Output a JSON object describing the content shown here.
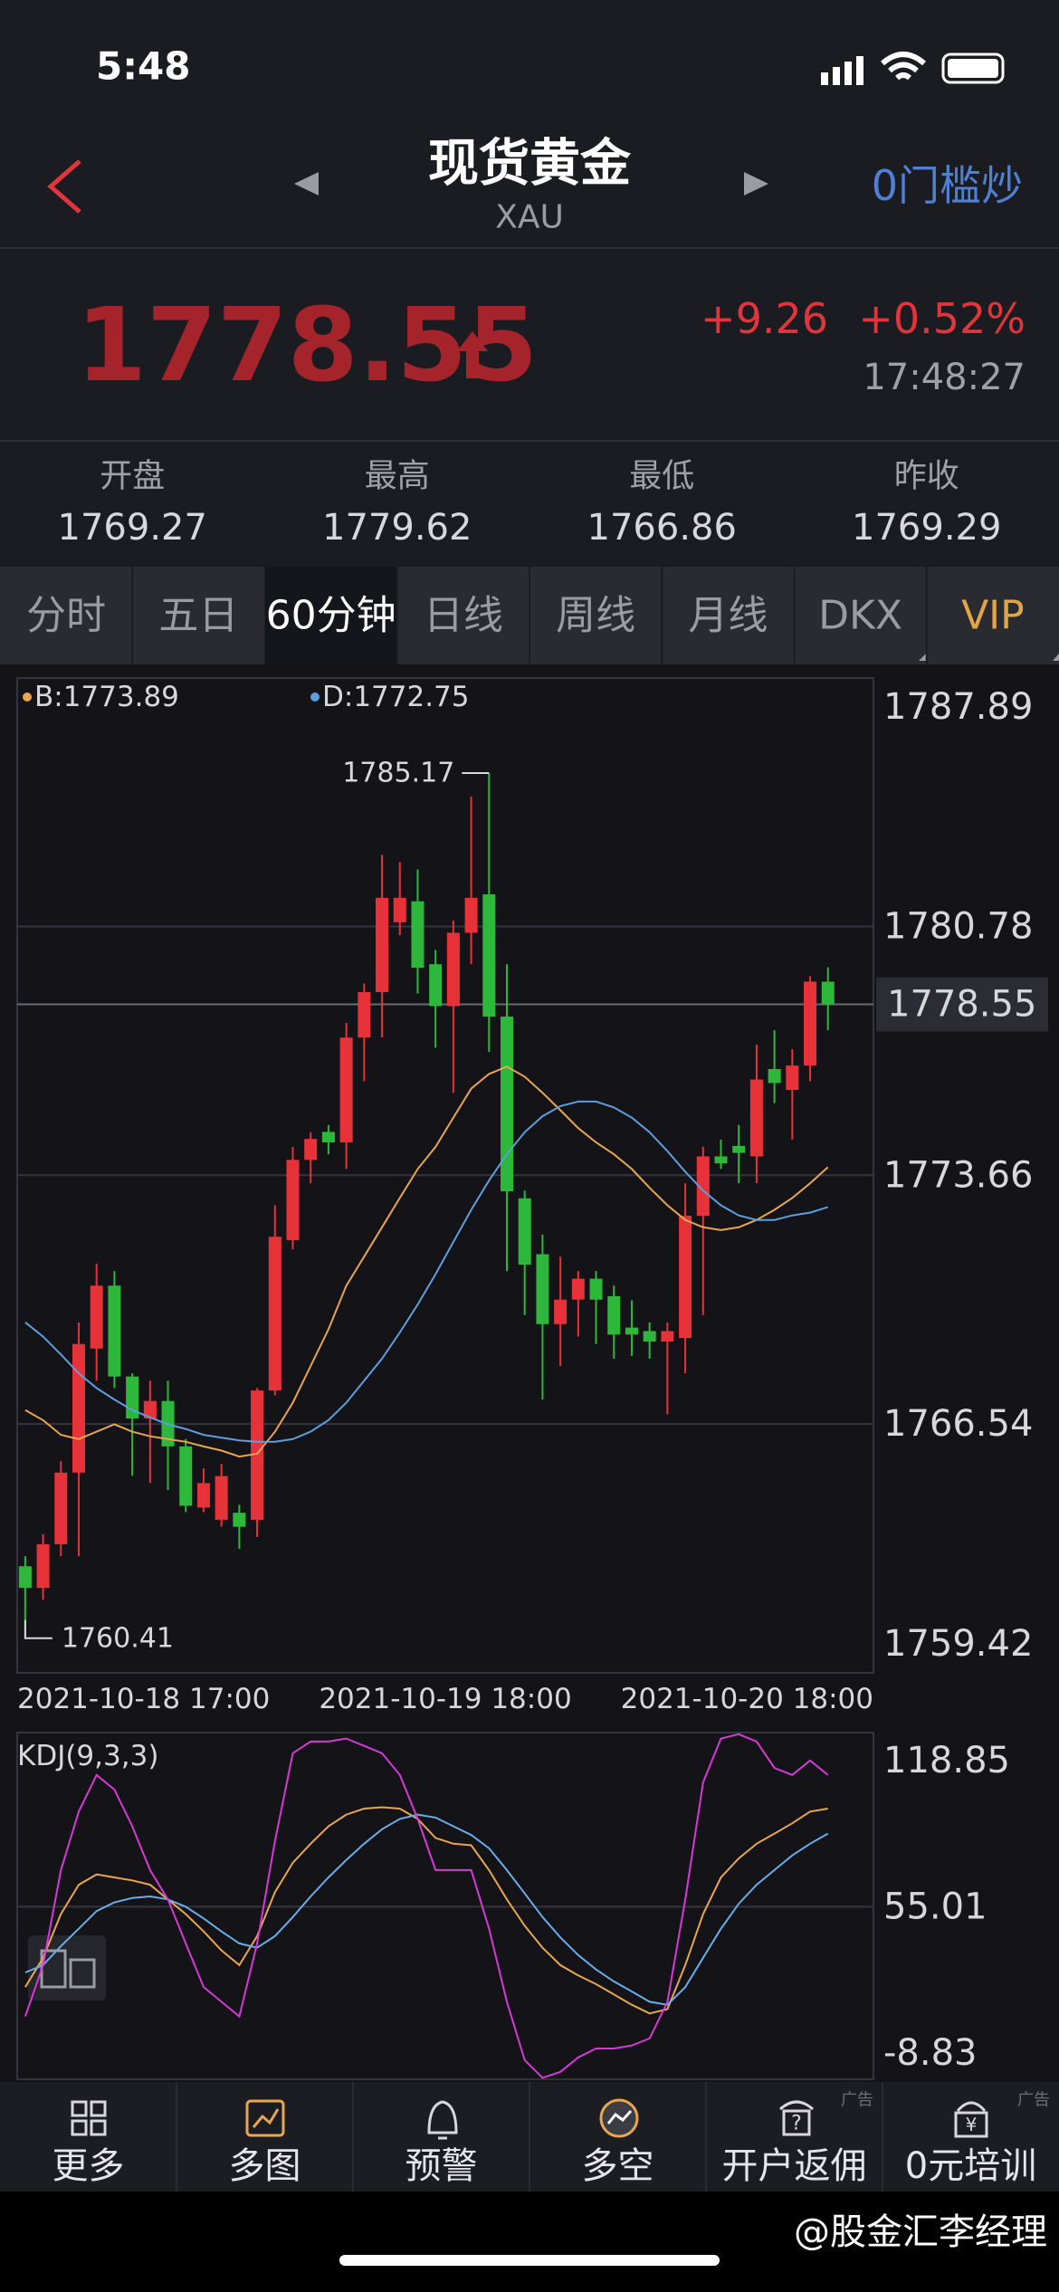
{
  "status_bar": {
    "time": "5:48"
  },
  "header": {
    "title": "现货黄金",
    "subtitle": "XAU",
    "action": "0门槛炒"
  },
  "quote": {
    "price": 1778.55,
    "change": "+9.26",
    "change_pct": "+0.52%",
    "time": "17:48:27"
  },
  "stats": [
    {
      "label": "开盘",
      "value": 1769.27
    },
    {
      "label": "最高",
      "value": 1779.62
    },
    {
      "label": "最低",
      "value": 1766.86
    },
    {
      "label": "昨收",
      "value": 1769.29
    }
  ],
  "tabs": [
    "分时",
    "五日",
    "60分钟",
    "日线",
    "周线",
    "月线",
    "DKX",
    "VIP"
  ],
  "active_tab": 2,
  "accent_tab": 7,
  "chart_data": [
    {
      "type": "candlestick",
      "legend": [
        "B:1773.89",
        "D:1772.75"
      ],
      "x_labels": [
        "2021-10-18 17:00",
        "2021-10-19 18:00",
        "2021-10-20 18:00"
      ],
      "up_color": "#e8323a",
      "down_color": "#2db83b",
      "open": [
        1762.47,
        1761.85,
        1763.1,
        1765.15,
        1768.7,
        1770.5,
        1767.9,
        1766.7,
        1767.2,
        1765.9,
        1764.15,
        1763.8,
        1764.0,
        1763.8,
        1767.5,
        1771.8,
        1774.1,
        1774.9,
        1774.6,
        1777.6,
        1778.9,
        1780.9,
        1781.5,
        1779.7,
        1778.5,
        1780.6,
        1781.7,
        1778.2,
        1773.0,
        1771.4,
        1769.4,
        1770.1,
        1770.7,
        1770.2,
        1769.3,
        1769.2,
        1768.9,
        1769.0,
        1772.5,
        1774.2,
        1774.5,
        1774.2,
        1776.7,
        1776.1,
        1776.8,
        1779.2
      ],
      "high": [
        1762.76,
        1763.39,
        1765.48,
        1769.45,
        1771.13,
        1770.92,
        1767.99,
        1767.78,
        1767.78,
        1766.11,
        1765.27,
        1765.4,
        1764.23,
        1767.57,
        1772.8,
        1774.47,
        1774.89,
        1775.1,
        1778.02,
        1779.15,
        1782.83,
        1782.62,
        1782.41,
        1780.11,
        1780.95,
        1784.5,
        1785.17,
        1779.7,
        1773.22,
        1771.96,
        1771.33,
        1770.92,
        1770.92,
        1770.5,
        1770.08,
        1769.45,
        1769.45,
        1773.43,
        1774.47,
        1774.68,
        1775.1,
        1777.4,
        1777.81,
        1777.27,
        1779.36,
        1779.61
      ],
      "low": [
        1760.41,
        1761.51,
        1762.76,
        1762.76,
        1767.78,
        1767.57,
        1765.06,
        1764.85,
        1764.65,
        1764.02,
        1764.02,
        1763.6,
        1762.97,
        1763.31,
        1767.36,
        1771.54,
        1773.43,
        1774.26,
        1773.84,
        1776.35,
        1777.61,
        1780.53,
        1778.86,
        1777.31,
        1776.02,
        1779.7,
        1777.19,
        1770.92,
        1769.66,
        1767.24,
        1768.2,
        1769.04,
        1768.83,
        1768.41,
        1768.49,
        1768.41,
        1766.82,
        1767.99,
        1769.66,
        1773.84,
        1773.43,
        1773.43,
        1775.72,
        1774.68,
        1776.35,
        1777.81
      ],
      "close": [
        1761.85,
        1763.1,
        1765.15,
        1768.83,
        1770.5,
        1767.9,
        1766.7,
        1767.2,
        1765.9,
        1764.2,
        1764.85,
        1765.05,
        1763.6,
        1767.5,
        1771.9,
        1774.1,
        1774.7,
        1774.6,
        1777.6,
        1778.9,
        1781.6,
        1781.6,
        1779.6,
        1778.5,
        1780.6,
        1781.6,
        1778.2,
        1773.2,
        1771.1,
        1769.4,
        1770.1,
        1770.7,
        1770.1,
        1769.1,
        1769.1,
        1768.9,
        1769.2,
        1772.5,
        1774.2,
        1774.0,
        1774.3,
        1776.4,
        1776.3,
        1776.8,
        1779.2,
        1778.55
      ],
      "series": [
        {
          "name": "B",
          "color": "#e8a650",
          "values": [
            1766.94,
            1766.65,
            1766.23,
            1766.11,
            1766.32,
            1766.53,
            1766.32,
            1766.19,
            1766.11,
            1766.03,
            1765.9,
            1765.78,
            1765.61,
            1765.69,
            1766.32,
            1767.15,
            1768.2,
            1769.25,
            1770.5,
            1771.33,
            1772.17,
            1773.01,
            1773.84,
            1774.47,
            1775.31,
            1776.14,
            1776.56,
            1776.77,
            1776.48,
            1776.02,
            1775.52,
            1775.01,
            1774.6,
            1774.26,
            1773.84,
            1773.3,
            1772.8,
            1772.38,
            1772.17,
            1772.09,
            1772.17,
            1772.38,
            1772.67,
            1773.01,
            1773.43,
            1773.89
          ]
        },
        {
          "name": "D",
          "color": "#5e9fdc",
          "values": [
            1769.45,
            1769.04,
            1768.53,
            1767.99,
            1767.57,
            1767.24,
            1766.94,
            1766.73,
            1766.53,
            1766.4,
            1766.23,
            1766.15,
            1766.07,
            1766.03,
            1766.03,
            1766.11,
            1766.32,
            1766.65,
            1767.15,
            1767.78,
            1768.41,
            1769.16,
            1769.96,
            1770.83,
            1771.75,
            1772.67,
            1773.51,
            1774.26,
            1774.89,
            1775.35,
            1775.64,
            1775.77,
            1775.77,
            1775.6,
            1775.31,
            1774.89,
            1774.35,
            1773.76,
            1773.22,
            1772.8,
            1772.51,
            1772.38,
            1772.38,
            1772.51,
            1772.59,
            1772.75
          ]
        }
      ],
      "annotations": [
        1785.17,
        1760.41
      ],
      "ylim": [
        1759.42,
        1787.89
      ],
      "yticks": [
        1759.42,
        1766.54,
        1773.66,
        1780.78,
        1787.89
      ],
      "grid": true
    },
    {
      "type": "line",
      "title": "KDJ(9,3,3)",
      "series": [
        {
          "name": "K",
          "color": "#e8a650",
          "values": [
            19.9,
            32.7,
            51.8,
            64.6,
            69.1,
            67.8,
            66.5,
            64.6,
            58.2,
            51.8,
            44.2,
            35.9,
            29.5,
            42.2,
            61.4,
            74.2,
            82.5,
            90.1,
            95.2,
            97.8,
            98.4,
            97.8,
            93.3,
            85.0,
            82.5,
            81.8,
            71.0,
            58.2,
            46.7,
            37.1,
            29.5,
            25.0,
            21.2,
            16.7,
            12.2,
            8.4,
            10.3,
            29.5,
            51.8,
            67.8,
            76.1,
            82.5,
            86.9,
            91.4,
            96.5,
            97.8
          ]
        },
        {
          "name": "D",
          "color": "#6aaee8",
          "values": [
            26.3,
            29.5,
            37.8,
            45.4,
            53.1,
            56.9,
            58.8,
            59.5,
            58.2,
            55.0,
            49.9,
            44.2,
            39.0,
            37.1,
            42.2,
            50.5,
            59.5,
            67.8,
            75.4,
            82.5,
            88.8,
            93.3,
            95.2,
            93.9,
            90.1,
            86.3,
            80.5,
            71.0,
            60.8,
            50.5,
            41.6,
            33.9,
            27.6,
            22.4,
            18.0,
            13.5,
            12.2,
            19.9,
            32.7,
            45.4,
            56.3,
            64.6,
            71.0,
            77.4,
            82.5,
            86.9
          ]
        },
        {
          "name": "J",
          "color": "#d63ad6",
          "values": [
            7.1,
            29.5,
            71.0,
            96.5,
            112.5,
            106.1,
            90.1,
            71.0,
            58.2,
            39.0,
            19.9,
            13.5,
            7.1,
            39.0,
            83.7,
            122.0,
            127.1,
            127.1,
            128.4,
            125.2,
            122.0,
            112.5,
            93.3,
            71.0,
            71.0,
            71.0,
            45.4,
            13.5,
            -12.0,
            -19.7,
            -17.1,
            -10.8,
            -6.9,
            -6.9,
            -5.6,
            -2.5,
            13.5,
            58.2,
            109.3,
            128.4,
            130.3,
            127.1,
            115.6,
            112.5,
            118.8,
            112.5
          ]
        }
      ],
      "ylim": [
        -20.32,
        131.0
      ],
      "yticks": [
        -8.83,
        55.01,
        118.85
      ],
      "grid": true
    }
  ],
  "nav": [
    "更多",
    "多图",
    "预警",
    "多空",
    "开户返佣",
    "0元培训"
  ],
  "ad_tag": "广告",
  "watermark": "@股金汇李经理"
}
